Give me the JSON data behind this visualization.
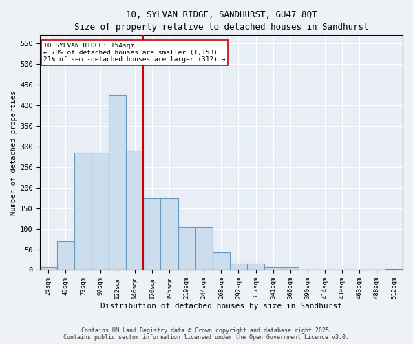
{
  "title_line1": "10, SYLVAN RIDGE, SANDHURST, GU47 8QT",
  "title_line2": "Size of property relative to detached houses in Sandhurst",
  "xlabel": "Distribution of detached houses by size in Sandhurst",
  "ylabel": "Number of detached properties",
  "bin_labels": [
    "24sqm",
    "49sqm",
    "73sqm",
    "97sqm",
    "122sqm",
    "146sqm",
    "170sqm",
    "195sqm",
    "219sqm",
    "244sqm",
    "268sqm",
    "292sqm",
    "317sqm",
    "341sqm",
    "366sqm",
    "390sqm",
    "414sqm",
    "439sqm",
    "463sqm",
    "488sqm",
    "512sqm"
  ],
  "bar_heights": [
    7,
    70,
    285,
    285,
    425,
    290,
    175,
    175,
    105,
    105,
    42,
    15,
    15,
    8,
    8,
    0,
    0,
    0,
    0,
    0,
    3
  ],
  "bar_color": "#ccdded",
  "bar_edge_color": "#6699bb",
  "vline_color": "#cc0000",
  "annotation_label": "10 SYLVAN RIDGE: 154sqm",
  "annotation_line1": "← 78% of detached houses are smaller (1,153)",
  "annotation_line2": "21% of semi-detached houses are larger (312) →",
  "annotation_box_facecolor": "#ffffff",
  "annotation_box_edgecolor": "#cc0000",
  "ylim": [
    0,
    570
  ],
  "yticks": [
    0,
    50,
    100,
    150,
    200,
    250,
    300,
    350,
    400,
    450,
    500,
    550
  ],
  "background_color": "#e8eef5",
  "fig_background_color": "#eef2f7",
  "grid_color": "#ffffff",
  "footer_line1": "Contains HM Land Registry data © Crown copyright and database right 2025.",
  "footer_line2": "Contains public sector information licensed under the Open Government Licence v3.0."
}
